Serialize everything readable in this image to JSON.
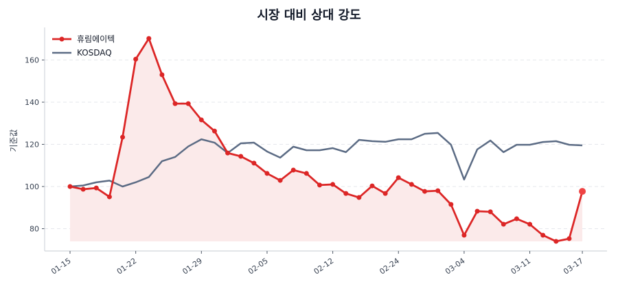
{
  "chart_data": {
    "type": "line",
    "title": "시장 대비 상대 강도",
    "xlabel": "",
    "ylabel": "기준값",
    "ylim": [
      70,
      175
    ],
    "yticks": [
      80,
      100,
      120,
      140,
      160
    ],
    "grid": true,
    "legend_position": "upper left",
    "xtick_labels": [
      "01-15",
      "01-22",
      "01-29",
      "02-05",
      "02-12",
      "02-24",
      "03-04",
      "03-11",
      "03-17"
    ],
    "xtick_indices": [
      0,
      5,
      10,
      15,
      20,
      25,
      30,
      35,
      39
    ],
    "series": [
      {
        "name": "휴림에이텍",
        "color": "#DC2626",
        "marker": "circle",
        "fill": "#FBEAEA",
        "values": [
          100.0,
          98.7,
          99.3,
          95.1,
          123.4,
          160.4,
          170.2,
          153.0,
          139.3,
          139.3,
          131.6,
          126.3,
          115.9,
          114.3,
          111.1,
          106.2,
          102.9,
          107.8,
          106.2,
          100.7,
          101.0,
          96.7,
          94.8,
          100.3,
          96.7,
          104.2,
          101.0,
          97.7,
          98.0,
          91.5,
          76.9,
          88.3,
          88.0,
          82.1,
          84.7,
          82.1,
          76.9,
          74.0,
          75.3,
          97.7
        ]
      },
      {
        "name": "KOSDAQ",
        "color": "#5B6B84",
        "marker": "none",
        "values": [
          100.0,
          100.5,
          102.0,
          102.8,
          100.0,
          102.0,
          104.5,
          112.0,
          114.0,
          119.0,
          122.4,
          120.8,
          115.9,
          120.5,
          120.8,
          116.6,
          113.7,
          118.9,
          117.2,
          117.2,
          118.2,
          116.3,
          122.1,
          121.5,
          121.2,
          122.4,
          122.4,
          125.0,
          125.4,
          119.8,
          103.3,
          117.6,
          121.8,
          116.3,
          119.8,
          119.8,
          121.1,
          121.5,
          119.8,
          119.5
        ]
      }
    ]
  }
}
